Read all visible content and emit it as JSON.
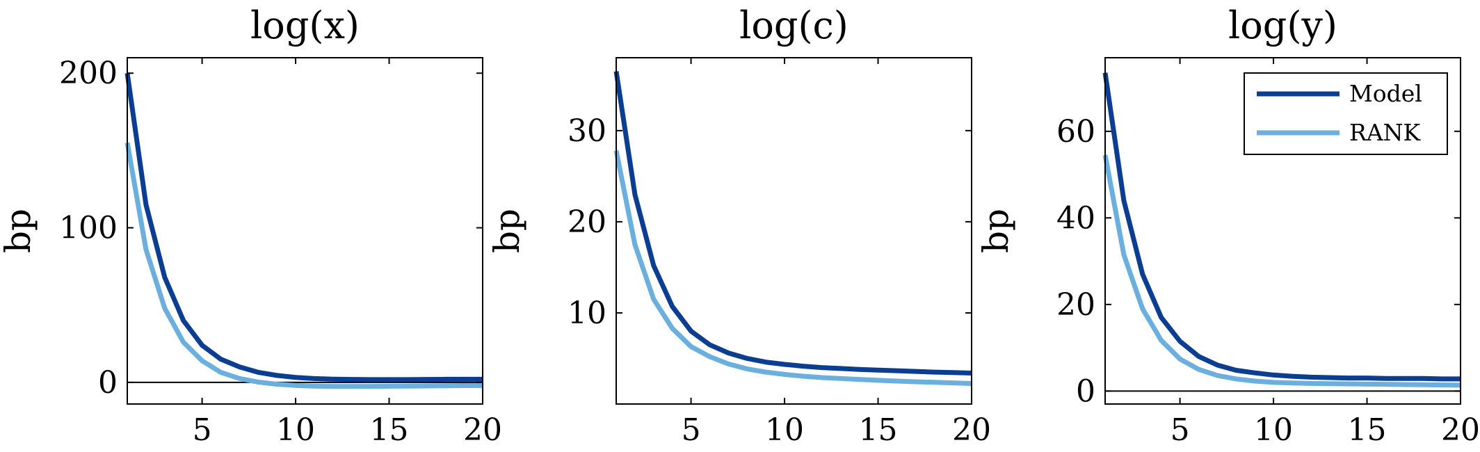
{
  "chart_data": [
    {
      "type": "line",
      "title": "log(x)",
      "ylabel": "bp",
      "xlim": [
        1,
        20
      ],
      "ylim": [
        -14,
        210
      ],
      "xticks": [
        5,
        10,
        15,
        20
      ],
      "yticks": [
        0,
        100,
        200
      ],
      "zero_line": true,
      "x": [
        1,
        2,
        3,
        4,
        5,
        6,
        7,
        8,
        9,
        10,
        11,
        12,
        13,
        14,
        15,
        16,
        17,
        18,
        19,
        20
      ],
      "series": [
        {
          "name": "Model",
          "color": "#0b3d91",
          "values": [
            200,
            115,
            68,
            40,
            24,
            15,
            10,
            6.5,
            4.5,
            3.2,
            2.5,
            2.1,
            1.9,
            1.8,
            1.8,
            1.8,
            1.9,
            2.0,
            2.0,
            2.0
          ]
        },
        {
          "name": "RANK",
          "color": "#6aafde",
          "values": [
            155,
            86,
            48,
            26,
            14,
            6.5,
            2.5,
            0.2,
            -1.2,
            -2.0,
            -2.4,
            -2.6,
            -2.6,
            -2.6,
            -2.5,
            -2.4,
            -2.3,
            -2.2,
            -2.1,
            -2.0
          ]
        }
      ]
    },
    {
      "type": "line",
      "title": "log(c)",
      "ylabel": "bp",
      "xlim": [
        1,
        20
      ],
      "ylim": [
        0,
        38
      ],
      "xticks": [
        5,
        10,
        15,
        20
      ],
      "yticks": [
        10,
        20,
        30
      ],
      "zero_line": false,
      "x": [
        1,
        2,
        3,
        4,
        5,
        6,
        7,
        8,
        9,
        10,
        11,
        12,
        13,
        14,
        15,
        16,
        17,
        18,
        19,
        20
      ],
      "series": [
        {
          "name": "Model",
          "color": "#0b3d91",
          "values": [
            36.5,
            23,
            15.2,
            10.7,
            8.0,
            6.5,
            5.6,
            5.0,
            4.6,
            4.35,
            4.15,
            4.0,
            3.9,
            3.8,
            3.72,
            3.65,
            3.58,
            3.5,
            3.45,
            3.4
          ]
        },
        {
          "name": "RANK",
          "color": "#6aafde",
          "values": [
            27.8,
            17.5,
            11.5,
            8.3,
            6.3,
            5.2,
            4.4,
            3.85,
            3.5,
            3.25,
            3.05,
            2.9,
            2.8,
            2.7,
            2.6,
            2.52,
            2.44,
            2.38,
            2.32,
            2.25
          ]
        }
      ]
    },
    {
      "type": "line",
      "title": "log(y)",
      "ylabel": "bp",
      "xlim": [
        1,
        20
      ],
      "ylim": [
        -3,
        77
      ],
      "xticks": [
        5,
        10,
        15,
        20
      ],
      "yticks": [
        0,
        20,
        40,
        60
      ],
      "zero_line": true,
      "legend": {
        "position": "top-right",
        "entries": [
          "Model",
          "RANK"
        ]
      },
      "x": [
        1,
        2,
        3,
        4,
        5,
        6,
        7,
        8,
        9,
        10,
        11,
        12,
        13,
        14,
        15,
        16,
        17,
        18,
        19,
        20
      ],
      "series": [
        {
          "name": "Model",
          "color": "#0b3d91",
          "values": [
            73.5,
            44,
            27,
            17,
            11.5,
            8,
            6,
            4.8,
            4.2,
            3.7,
            3.4,
            3.2,
            3.1,
            3.0,
            3.0,
            2.9,
            2.9,
            2.9,
            2.8,
            2.8
          ]
        },
        {
          "name": "RANK",
          "color": "#6aafde",
          "values": [
            54.5,
            31.5,
            19,
            11.7,
            7.4,
            5.0,
            3.6,
            2.8,
            2.3,
            2.0,
            1.85,
            1.75,
            1.7,
            1.65,
            1.6,
            1.55,
            1.5,
            1.45,
            1.4,
            1.35
          ]
        }
      ]
    }
  ]
}
